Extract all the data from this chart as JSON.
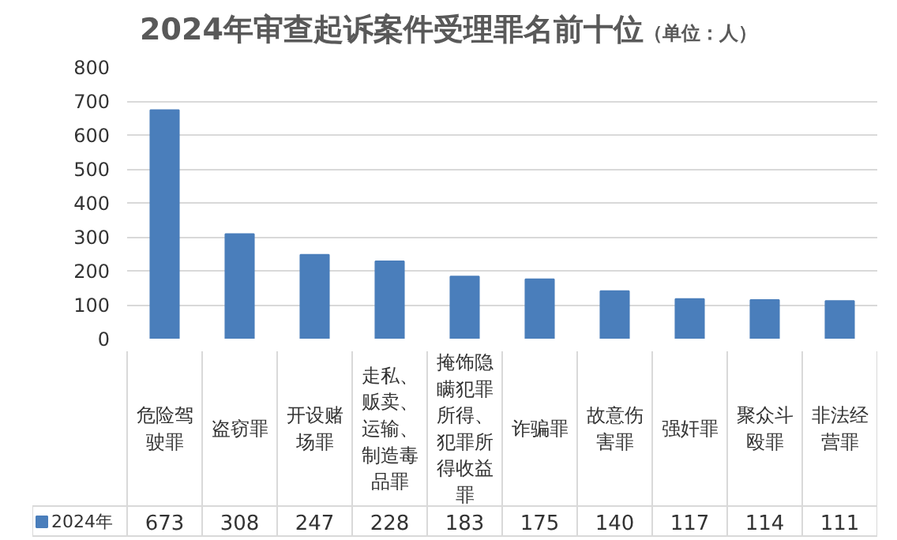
{
  "chart_data": {
    "type": "bar",
    "title": "2024年审查起诉案件受理罪名前十位",
    "subtitle": "（单位：人）",
    "categories": [
      "危险驾驶罪",
      "盗窃罪",
      "开设赌场罪",
      "走私、贩卖、运输、制造毒品罪",
      "掩饰隐瞒犯罪所得、犯罪所得收益罪",
      "诈骗罪",
      "故意伤害罪",
      "强奸罪",
      "聚众斗殴罪",
      "非法经营罪"
    ],
    "series": [
      {
        "name": "2024年",
        "color": "#4a7ebb",
        "values": [
          673,
          308,
          247,
          228,
          183,
          175,
          140,
          117,
          114,
          111
        ]
      }
    ],
    "ylim": [
      0,
      800
    ],
    "yticks": [
      0,
      100,
      200,
      300,
      400,
      500,
      600,
      700,
      800
    ],
    "grid": "y",
    "legend": "bottom left",
    "data_labels": true
  }
}
